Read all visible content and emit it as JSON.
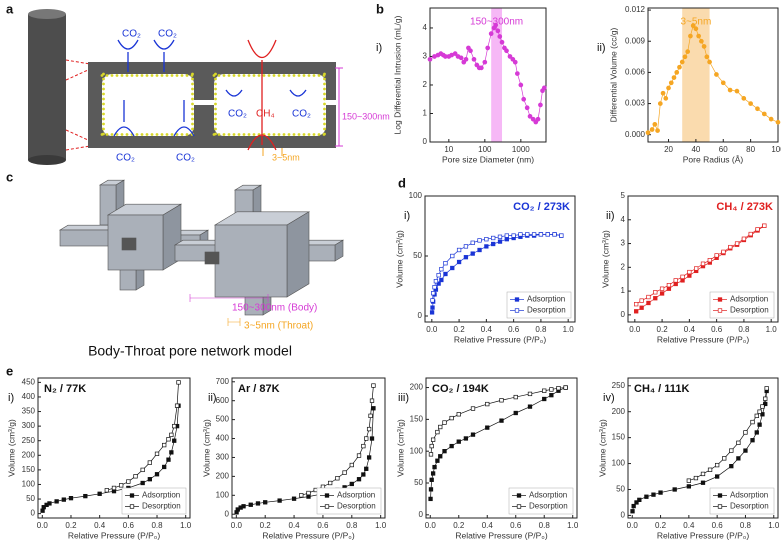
{
  "panel_letters": [
    "a",
    "b",
    "c",
    "d",
    "e"
  ],
  "diagram_a": {
    "labels": [
      "CO₂",
      "CO₂",
      "CO₂",
      "CO₂",
      "CO₂",
      "CH₄",
      "CO₂"
    ],
    "body_size": "150~300nm",
    "throat_size": "3~5nm"
  },
  "diagram_c": {
    "body_size": "150~300nm (Body)",
    "throat_size": "3~5nm (Throat)",
    "caption": "Body-Throat pore network model"
  },
  "chart_data": [
    {
      "type": "scatter",
      "label": "i)",
      "xlabel": "Pore size Diameter (nm)",
      "ylabel": "Log Differential Intrusion (mL/g)",
      "xlog": true,
      "xlim": [
        3,
        5000
      ],
      "xticks": [
        10,
        100,
        1000
      ],
      "ylim": [
        0,
        4.7
      ],
      "yticks": [
        0,
        1,
        2,
        3,
        4
      ],
      "color": "#d63ad6",
      "marker": "circle",
      "filled": true,
      "highlight": [
        150,
        300
      ],
      "highlight_color": "#f4a6f4",
      "annotation": "150~300nm",
      "annotation_color": "#d63ad6",
      "x": [
        3,
        4,
        5,
        6,
        7,
        8,
        10,
        12,
        15,
        18,
        22,
        26,
        30,
        35,
        40,
        50,
        60,
        70,
        80,
        100,
        120,
        150,
        180,
        200,
        230,
        260,
        300,
        350,
        400,
        500,
        600,
        700,
        800,
        1000,
        1200,
        1500,
        1800,
        2200,
        2600,
        3000,
        3500,
        4000,
        4500
      ],
      "values": [
        2.9,
        3.0,
        3.05,
        3.1,
        3.05,
        3.0,
        3.0,
        3.05,
        3.1,
        3.0,
        2.95,
        2.8,
        2.9,
        3.3,
        3.2,
        2.9,
        2.7,
        2.6,
        2.6,
        2.8,
        3.3,
        3.8,
        4.0,
        4.1,
        3.9,
        3.7,
        3.5,
        3.3,
        3.2,
        3.0,
        2.9,
        2.8,
        2.4,
        2.0,
        1.5,
        1.2,
        0.9,
        0.8,
        0.7,
        0.8,
        1.3,
        1.8,
        1.9
      ]
    },
    {
      "type": "scatter",
      "label": "ii)",
      "xlabel": "Pore Radius (Å)",
      "ylabel": "Differential Volume (cc/g)",
      "xlim": [
        5,
        100
      ],
      "xticks": [
        20,
        40,
        60,
        80,
        100
      ],
      "ylim": [
        -0.0007,
        0.0122
      ],
      "yticks": [
        {
          "value": 0,
          "label": "0.000"
        },
        0.003,
        0.006,
        0.009,
        0.012
      ],
      "color": "#f5a623",
      "marker": "circle",
      "filled": true,
      "highlight": [
        30,
        50
      ],
      "highlight_color": "#f9d29a",
      "annotation": "3~5nm",
      "annotation_color": "#f5a623",
      "x": [
        5,
        8,
        10,
        12,
        14,
        16,
        18,
        20,
        22,
        24,
        26,
        28,
        30,
        32,
        34,
        36,
        38,
        40,
        42,
        44,
        46,
        48,
        50,
        55,
        60,
        65,
        70,
        75,
        80,
        85,
        90,
        95,
        100
      ],
      "values": [
        0.0002,
        0.0005,
        0.001,
        0.0004,
        0.003,
        0.004,
        0.0035,
        0.0045,
        0.005,
        0.0055,
        0.006,
        0.0065,
        0.007,
        0.0075,
        0.008,
        0.0095,
        0.0105,
        0.0102,
        0.0095,
        0.009,
        0.0085,
        0.0075,
        0.007,
        0.0058,
        0.005,
        0.0043,
        0.0042,
        0.0035,
        0.003,
        0.0025,
        0.002,
        0.0015,
        0.0012
      ]
    },
    {
      "type": "scatter",
      "label": "i)",
      "title": "CO₂ / 273K",
      "title_color": "#1a35d6",
      "title_position": "top-right",
      "xlabel": "Relative Pressure  (P/P₀)",
      "ylabel": "Volume (cm³/g)",
      "xlim": [
        -0.05,
        1.05
      ],
      "xticks": [
        {
          "value": 0,
          "label": "0.0"
        },
        0.2,
        0.4,
        0.6,
        0.8,
        {
          "value": 1,
          "label": "1.0"
        }
      ],
      "ylim": [
        -5,
        100
      ],
      "yticks": [
        0,
        50,
        100
      ],
      "legend": "lower right",
      "series": [
        {
          "name": "Adsorption",
          "color": "#1a35d6",
          "marker": "square",
          "filled": true,
          "x": [
            0.002,
            0.005,
            0.01,
            0.02,
            0.03,
            0.05,
            0.07,
            0.1,
            0.15,
            0.2,
            0.25,
            0.3,
            0.35,
            0.4,
            0.45,
            0.5,
            0.55,
            0.6,
            0.65,
            0.7,
            0.75,
            0.8,
            0.85,
            0.9,
            0.95
          ],
          "values": [
            3,
            7,
            12,
            18,
            22,
            27,
            30,
            35,
            40,
            45,
            49,
            52,
            55,
            58,
            60,
            62,
            64,
            65,
            66,
            67,
            67,
            68,
            68,
            68,
            67
          ]
        },
        {
          "name": "Desorption",
          "color": "#1a35d6",
          "marker": "square",
          "filled": false,
          "x": [
            0.95,
            0.9,
            0.85,
            0.8,
            0.75,
            0.7,
            0.65,
            0.6,
            0.55,
            0.5,
            0.45,
            0.4,
            0.35,
            0.3,
            0.25,
            0.2,
            0.15,
            0.1,
            0.07,
            0.05,
            0.03,
            0.02,
            0.01,
            0.005
          ],
          "values": [
            67,
            68,
            68,
            68,
            68,
            68,
            68,
            67,
            67,
            66,
            65,
            64,
            63,
            61,
            58,
            55,
            50,
            44,
            39,
            34,
            29,
            24,
            19,
            13
          ]
        }
      ]
    },
    {
      "type": "scatter",
      "label": "ii)",
      "title": "CH₄ / 273K",
      "title_color": "#e02020",
      "title_position": "top-right",
      "xlabel": "Relative Pressure  (P/P₀)",
      "ylabel": "Volume (cm³/g)",
      "xlim": [
        -0.05,
        1.05
      ],
      "xticks": [
        {
          "value": 0,
          "label": "0.0"
        },
        0.2,
        0.4,
        0.6,
        0.8,
        {
          "value": 1,
          "label": "1.0"
        }
      ],
      "ylim": [
        -0.3,
        5
      ],
      "yticks": [
        0,
        1,
        2,
        3,
        4,
        5
      ],
      "legend": "lower right",
      "series": [
        {
          "name": "Adsorption",
          "color": "#e02020",
          "marker": "square",
          "filled": true,
          "x": [
            0.01,
            0.05,
            0.1,
            0.15,
            0.2,
            0.25,
            0.3,
            0.35,
            0.4,
            0.45,
            0.5,
            0.55,
            0.6,
            0.65,
            0.7,
            0.75,
            0.8,
            0.85,
            0.9,
            0.95
          ],
          "values": [
            0.15,
            0.3,
            0.5,
            0.7,
            0.9,
            1.1,
            1.3,
            1.45,
            1.65,
            1.85,
            2.05,
            2.2,
            2.4,
            2.6,
            2.8,
            2.95,
            3.15,
            3.35,
            3.55,
            3.75
          ]
        },
        {
          "name": "Desorption",
          "color": "#e02020",
          "marker": "square",
          "filled": false,
          "x": [
            0.95,
            0.9,
            0.85,
            0.8,
            0.75,
            0.7,
            0.65,
            0.6,
            0.55,
            0.5,
            0.45,
            0.4,
            0.35,
            0.3,
            0.25,
            0.2,
            0.15,
            0.1,
            0.05,
            0.01
          ],
          "values": [
            3.75,
            3.6,
            3.4,
            3.2,
            3.0,
            2.85,
            2.65,
            2.5,
            2.3,
            2.15,
            1.95,
            1.8,
            1.6,
            1.45,
            1.25,
            1.1,
            0.95,
            0.75,
            0.6,
            0.45
          ]
        }
      ]
    },
    {
      "type": "scatter",
      "label": "i)",
      "title": "N₂ / 77K",
      "title_color": "#111111",
      "title_position": "top-left",
      "xlabel": "Relative Pressure  (P/P₀)",
      "ylabel": "Volume (cm³/g)",
      "xlim": [
        -0.03,
        1.03
      ],
      "xticks": [
        {
          "value": 0,
          "label": "0.0"
        },
        0.2,
        0.4,
        0.6,
        0.8,
        {
          "value": 1,
          "label": "1.0"
        }
      ],
      "ylim": [
        -15,
        465
      ],
      "yticks": [
        0,
        50,
        100,
        150,
        200,
        250,
        300,
        350,
        400,
        450
      ],
      "legend": "lower right",
      "series": [
        {
          "name": "Adsorption",
          "color": "#111111",
          "marker": "square",
          "filled": true,
          "x": [
            0.002,
            0.01,
            0.03,
            0.05,
            0.1,
            0.15,
            0.2,
            0.3,
            0.4,
            0.5,
            0.6,
            0.7,
            0.75,
            0.8,
            0.85,
            0.88,
            0.9,
            0.92,
            0.94,
            0.95
          ],
          "values": [
            10,
            22,
            30,
            35,
            42,
            48,
            53,
            60,
            68,
            77,
            88,
            105,
            118,
            135,
            160,
            185,
            210,
            250,
            300,
            370
          ]
        },
        {
          "name": "Desorption",
          "color": "#111111",
          "marker": "square",
          "filled": false,
          "x": [
            0.95,
            0.94,
            0.92,
            0.9,
            0.88,
            0.85,
            0.8,
            0.75,
            0.7,
            0.65,
            0.6,
            0.55,
            0.5,
            0.45
          ],
          "values": [
            450,
            370,
            300,
            270,
            255,
            235,
            205,
            175,
            150,
            128,
            110,
            97,
            88,
            80
          ]
        }
      ]
    },
    {
      "type": "scatter",
      "label": "ii)",
      "title": "Ar / 87K",
      "title_color": "#111111",
      "title_position": "top-left",
      "xlabel": "Relative Pressure  (P/P₀)",
      "ylabel": "Volume (cm³/g)",
      "xlim": [
        -0.03,
        1.03
      ],
      "xticks": [
        {
          "value": 0,
          "label": "0.0"
        },
        0.2,
        0.4,
        0.6,
        0.8,
        {
          "value": 1,
          "label": "1.0"
        }
      ],
      "ylim": [
        -20,
        720
      ],
      "yticks": [
        0,
        100,
        200,
        300,
        400,
        500,
        600,
        700
      ],
      "legend": "lower right",
      "series": [
        {
          "name": "Adsorption",
          "color": "#111111",
          "marker": "square",
          "filled": true,
          "x": [
            0.002,
            0.01,
            0.03,
            0.05,
            0.1,
            0.15,
            0.2,
            0.3,
            0.4,
            0.5,
            0.6,
            0.7,
            0.75,
            0.8,
            0.85,
            0.88,
            0.9,
            0.92,
            0.94,
            0.95
          ],
          "values": [
            10,
            25,
            35,
            42,
            50,
            57,
            63,
            72,
            82,
            93,
            108,
            128,
            142,
            160,
            185,
            210,
            240,
            300,
            400,
            560
          ]
        },
        {
          "name": "Desorption",
          "color": "#111111",
          "marker": "square",
          "filled": false,
          "x": [
            0.95,
            0.94,
            0.93,
            0.92,
            0.9,
            0.88,
            0.85,
            0.8,
            0.75,
            0.7,
            0.65,
            0.6,
            0.55,
            0.5,
            0.45
          ],
          "values": [
            680,
            600,
            520,
            450,
            400,
            360,
            310,
            260,
            220,
            190,
            165,
            145,
            128,
            112,
            100
          ]
        }
      ]
    },
    {
      "type": "scatter",
      "label": "iii)",
      "title": "CO₂ / 194K",
      "title_color": "#111111",
      "title_position": "top-left",
      "xlabel": "Relative Pressure  (P/P₀)",
      "ylabel": "Volume (cm³/g)",
      "xlim": [
        -0.03,
        1.03
      ],
      "xticks": [
        {
          "value": 0,
          "label": "0.0"
        },
        0.2,
        0.4,
        0.6,
        0.8,
        {
          "value": 1,
          "label": "1.0"
        }
      ],
      "ylim": [
        -5,
        215
      ],
      "yticks": [
        0,
        50,
        100,
        150,
        200
      ],
      "legend": "lower right",
      "series": [
        {
          "name": "Adsorption",
          "color": "#111111",
          "marker": "square",
          "filled": true,
          "x": [
            0.002,
            0.005,
            0.01,
            0.02,
            0.03,
            0.05,
            0.07,
            0.1,
            0.15,
            0.2,
            0.25,
            0.3,
            0.4,
            0.5,
            0.6,
            0.7,
            0.8,
            0.85,
            0.9,
            0.95
          ],
          "values": [
            25,
            40,
            55,
            65,
            75,
            85,
            92,
            100,
            108,
            115,
            120,
            126,
            137,
            148,
            160,
            170,
            182,
            188,
            195,
            200
          ]
        },
        {
          "name": "Desorption",
          "color": "#111111",
          "marker": "square",
          "filled": false,
          "x": [
            0.95,
            0.9,
            0.85,
            0.8,
            0.7,
            0.6,
            0.5,
            0.4,
            0.3,
            0.2,
            0.15,
            0.1,
            0.07,
            0.05,
            0.02,
            0.01,
            0.005
          ],
          "values": [
            200,
            199,
            197,
            195,
            190,
            185,
            180,
            174,
            167,
            158,
            152,
            145,
            138,
            130,
            118,
            108,
            95
          ]
        }
      ]
    },
    {
      "type": "scatter",
      "label": "iv)",
      "title": "CH₄ / 111K",
      "title_color": "#111111",
      "title_position": "top-left",
      "xlabel": "Relative Pressure  (P/P₀)",
      "ylabel": "Volume (cm³/g)",
      "xlim": [
        -0.03,
        1.03
      ],
      "xticks": [
        {
          "value": 0,
          "label": "0.0"
        },
        0.2,
        0.4,
        0.6,
        0.8,
        {
          "value": 1,
          "label": "1.0"
        }
      ],
      "ylim": [
        -5,
        265
      ],
      "yticks": [
        0,
        50,
        100,
        150,
        200,
        250
      ],
      "legend": "lower right",
      "series": [
        {
          "name": "Adsorption",
          "color": "#111111",
          "marker": "square",
          "filled": true,
          "x": [
            0.002,
            0.01,
            0.03,
            0.05,
            0.1,
            0.15,
            0.2,
            0.3,
            0.4,
            0.5,
            0.6,
            0.7,
            0.75,
            0.8,
            0.85,
            0.88,
            0.9,
            0.92,
            0.94,
            0.95
          ],
          "values": [
            8,
            18,
            25,
            30,
            36,
            40,
            44,
            50,
            56,
            63,
            75,
            95,
            110,
            125,
            145,
            160,
            175,
            195,
            215,
            240
          ]
        },
        {
          "name": "Desorption",
          "color": "#111111",
          "marker": "square",
          "filled": false,
          "x": [
            0.95,
            0.94,
            0.92,
            0.9,
            0.88,
            0.85,
            0.8,
            0.75,
            0.7,
            0.65,
            0.6,
            0.55,
            0.5,
            0.45,
            0.4
          ],
          "values": [
            245,
            225,
            210,
            200,
            192,
            180,
            160,
            140,
            125,
            110,
            97,
            88,
            80,
            72,
            67
          ]
        }
      ]
    }
  ]
}
